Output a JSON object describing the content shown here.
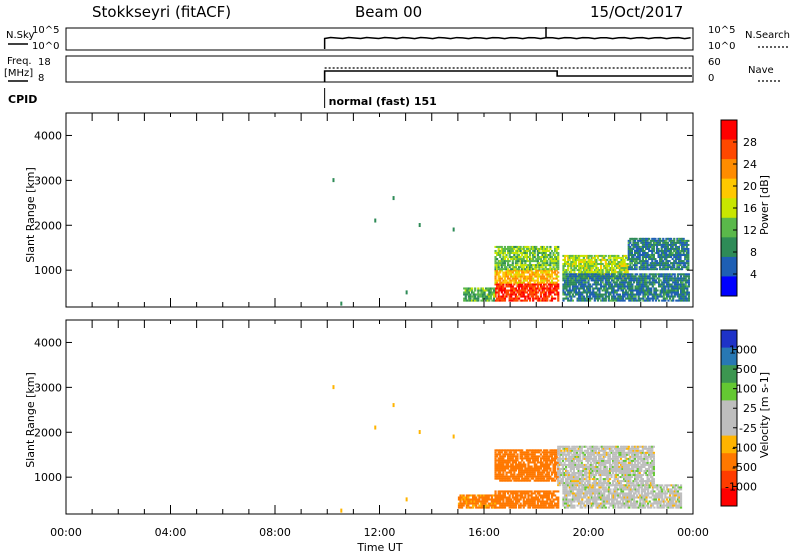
{
  "header": {
    "station": "Stokkseyri (fitACF)",
    "beam": "Beam 00",
    "date": "15/Oct/2017"
  },
  "noise_panel": {
    "left_label": "N.Sky",
    "left_ticks": [
      "10^5",
      "10^0"
    ],
    "right_ticks": [
      "10^5",
      "10^0"
    ],
    "right_label": "N.Search"
  },
  "freq_panel": {
    "left_label_top": "Freq.",
    "left_label_unit": "[MHz]",
    "left_ticks": [
      "18",
      "8"
    ],
    "right_ticks": [
      "60",
      "0"
    ],
    "right_label": "Nave"
  },
  "cpid": {
    "label": "CPID",
    "program": "normal (fast) 151"
  },
  "power_panel": {
    "y_label": "Slant Range [km]",
    "y_ticks": [
      "4000",
      "3000",
      "2000",
      "1000"
    ],
    "colorbar_label": "Power [dB]",
    "colorbar_ticks": [
      "28",
      "24",
      "20",
      "16",
      "12",
      "8",
      "4"
    ],
    "colorbar_colors": [
      "#ff0000",
      "#ff4800",
      "#ff8c00",
      "#ffc800",
      "#c8e600",
      "#5ab84a",
      "#2e8b57",
      "#1e5fb4",
      "#0000ff"
    ]
  },
  "velocity_panel": {
    "y_label": "Slant Range [km]",
    "y_ticks": [
      "4000",
      "3000",
      "2000",
      "1000"
    ],
    "colorbar_label": "Velocity [m s-1]",
    "colorbar_ticks": [
      "1000",
      "500",
      "100",
      "25",
      "-25",
      "-100",
      "-500",
      "-1000"
    ],
    "colorbar_colors": [
      "#1e32c8",
      "#2878b4",
      "#3c9650",
      "#64c832",
      "#bebebe",
      "#bebebe",
      "#ffb400",
      "#ff7800",
      "#ff3c00",
      "#ff0000"
    ]
  },
  "x_axis": {
    "label": "Time UT",
    "ticks": [
      "00:00",
      "04:00",
      "08:00",
      "12:00",
      "16:00",
      "20:00",
      "00:00"
    ]
  },
  "chart_data": {
    "type": "heatmap",
    "title": "Stokkseyri (fitACF)  Beam 00  15/Oct/2017",
    "xlabel": "Time UT",
    "ylabel": "Slant Range [km]",
    "x_range_hours": [
      0,
      24
    ],
    "y_range_km": [
      180,
      4500
    ],
    "cpid_start_hour": 9.9,
    "freq_step_hour": 18.8,
    "power_regions": [
      {
        "t0": 16.4,
        "t1": 18.8,
        "r0": 300,
        "r1": 700,
        "db": 28
      },
      {
        "t0": 16.4,
        "t1": 18.8,
        "r0": 700,
        "r1": 1000,
        "db": 20
      },
      {
        "t0": 16.4,
        "t1": 18.8,
        "r0": 1000,
        "r1": 1500,
        "db": 12
      },
      {
        "t0": 15.2,
        "t1": 16.4,
        "r0": 300,
        "r1": 600,
        "db": 10
      },
      {
        "t0": 19.0,
        "t1": 21.5,
        "r0": 800,
        "r1": 1300,
        "db": 14
      },
      {
        "t0": 19.0,
        "t1": 23.8,
        "r0": 300,
        "r1": 900,
        "db": 6
      },
      {
        "t0": 21.5,
        "t1": 23.8,
        "r0": 1000,
        "r1": 1700,
        "db": 6
      }
    ],
    "velocity_regions": [
      {
        "t0": 16.4,
        "t1": 18.8,
        "r0": 300,
        "r1": 700,
        "v": -150
      },
      {
        "t0": 16.4,
        "t1": 18.8,
        "r0": 900,
        "r1": 1600,
        "v": -150
      },
      {
        "t0": 15.0,
        "t1": 16.4,
        "r0": 300,
        "r1": 600,
        "v": -120
      },
      {
        "t0": 18.8,
        "t1": 22.5,
        "r0": 800,
        "r1": 1700,
        "v": 0
      },
      {
        "t0": 19.0,
        "t1": 23.5,
        "r0": 300,
        "r1": 800,
        "v": 0
      }
    ]
  }
}
